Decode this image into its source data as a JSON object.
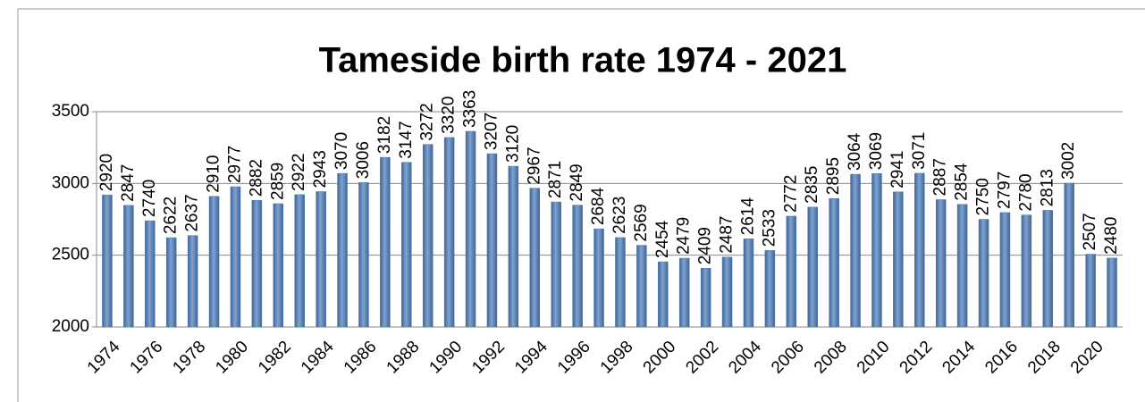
{
  "chart_data": {
    "type": "bar",
    "title": "Tameside birth rate 1974 - 2021",
    "categories": [
      "1974",
      null,
      "1976",
      null,
      "1978",
      null,
      "1980",
      null,
      "1982",
      null,
      "1984",
      null,
      "1986",
      null,
      "1988",
      null,
      "1990",
      null,
      "1992",
      null,
      "1994",
      null,
      "1996",
      null,
      "1998",
      null,
      "2000",
      null,
      "2002",
      null,
      "2004",
      null,
      "2006",
      null,
      "2008",
      null,
      "2010",
      null,
      "2012",
      null,
      "2014",
      null,
      "2016",
      null,
      "2018",
      null,
      "2020",
      null
    ],
    "values": [
      2920,
      2847,
      2740,
      2622,
      2637,
      2910,
      2977,
      2882,
      2859,
      2922,
      2943,
      3070,
      3006,
      3182,
      3147,
      3272,
      3320,
      3363,
      3207,
      3120,
      2967,
      2871,
      2849,
      2684,
      2623,
      2569,
      2454,
      2479,
      2409,
      2487,
      2614,
      2533,
      2772,
      2835,
      2895,
      3064,
      3069,
      2941,
      3071,
      2887,
      2854,
      2750,
      2797,
      2780,
      2813,
      3002,
      2507,
      2480
    ],
    "color": "#4f76a8",
    "ylim": [
      2000,
      3500
    ],
    "yticks": [
      2000,
      2500,
      3000,
      3500
    ],
    "grid": true
  }
}
